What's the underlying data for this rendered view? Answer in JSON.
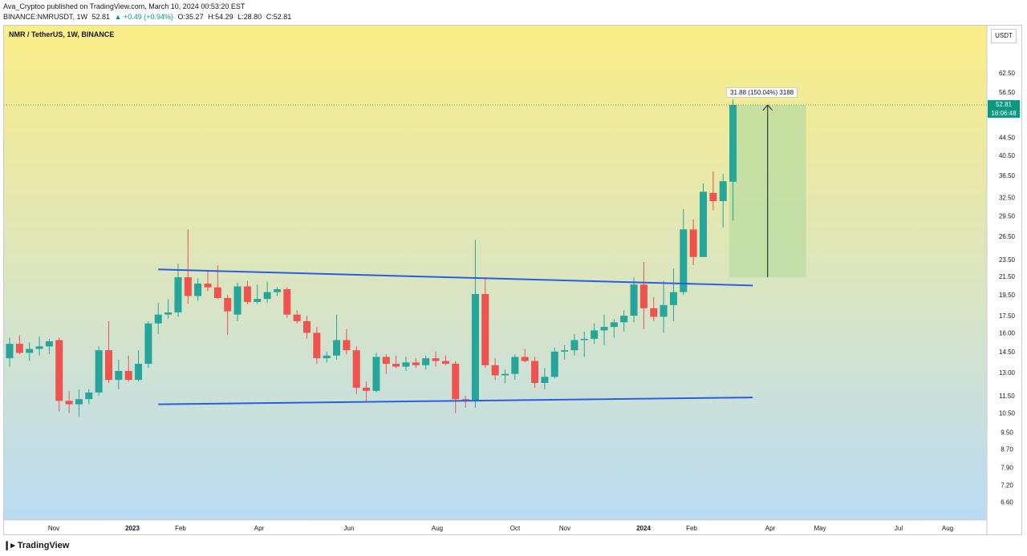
{
  "header": {
    "publisher": "Ava_Cryptoo published on TradingView.com, March 10, 2024 00:53:20 EST",
    "symbol": "BINANCE:NMRUSDT, 1W",
    "last": "52.81",
    "change": "▲ +0.49 (+0.94%)",
    "open": "O:35.27",
    "high": "H:54.29",
    "low": "L:28.80",
    "close": "C:52.81"
  },
  "chart": {
    "pair_label": "NMR / TetherUS, 1W, BINANCE",
    "currency": "USDT",
    "price_badge": {
      "price": "52.81",
      "countdown": "18:06:48"
    },
    "measure_label": "31.88 (150.04%) 3188",
    "colors": {
      "up": "#26a69a",
      "down": "#ef5350",
      "trendline": "#2a5ee0",
      "measure_fill": "#b9dca2",
      "bg_top": "#fbee87",
      "bg_bottom": "#bcdcf5"
    }
  },
  "footer": {
    "brand": "TradingView"
  },
  "chart_data": {
    "type": "candlestick",
    "y_scale": "log",
    "ylim": [
      6.0,
      80.0
    ],
    "y_ticks": [
      "62.50",
      "56.50",
      "44.50",
      "40.50",
      "36.50",
      "32.50",
      "29.50",
      "26.50",
      "23.50",
      "21.50",
      "19.50",
      "17.50",
      "16.00",
      "14.50",
      "13.00",
      "11.50",
      "10.50",
      "9.50",
      "8.70",
      "7.90",
      "7.20",
      "6.60"
    ],
    "x_labels": [
      "Nov",
      "2023",
      "Feb",
      "Apr",
      "Jun",
      "Aug",
      "Oct",
      "Nov",
      "2024",
      "Feb",
      "Apr",
      "May",
      "Jul",
      "Aug"
    ],
    "candles": [
      {
        "o": 14.0,
        "h": 15.6,
        "l": 13.4,
        "c": 15.1
      },
      {
        "o": 15.1,
        "h": 15.8,
        "l": 14.3,
        "c": 14.4
      },
      {
        "o": 14.4,
        "h": 15.2,
        "l": 13.8,
        "c": 14.7
      },
      {
        "o": 14.7,
        "h": 15.7,
        "l": 14.2,
        "c": 14.9
      },
      {
        "o": 14.9,
        "h": 15.5,
        "l": 14.3,
        "c": 15.3
      },
      {
        "o": 15.4,
        "h": 15.6,
        "l": 10.6,
        "c": 11.2
      },
      {
        "o": 11.2,
        "h": 11.8,
        "l": 10.5,
        "c": 11.0
      },
      {
        "o": 11.0,
        "h": 11.9,
        "l": 10.3,
        "c": 11.3
      },
      {
        "o": 11.3,
        "h": 11.9,
        "l": 11.0,
        "c": 11.7
      },
      {
        "o": 11.7,
        "h": 14.9,
        "l": 11.5,
        "c": 14.6
      },
      {
        "o": 14.6,
        "h": 17.0,
        "l": 12.3,
        "c": 12.5
      },
      {
        "o": 12.5,
        "h": 13.9,
        "l": 11.9,
        "c": 13.1
      },
      {
        "o": 13.1,
        "h": 14.2,
        "l": 12.4,
        "c": 12.5
      },
      {
        "o": 12.5,
        "h": 14.6,
        "l": 12.4,
        "c": 13.6
      },
      {
        "o": 13.6,
        "h": 17.0,
        "l": 13.3,
        "c": 16.8
      },
      {
        "o": 16.8,
        "h": 18.7,
        "l": 15.9,
        "c": 17.6
      },
      {
        "o": 17.6,
        "h": 19.1,
        "l": 17.2,
        "c": 17.8
      },
      {
        "o": 17.8,
        "h": 23.0,
        "l": 17.4,
        "c": 21.4
      },
      {
        "o": 21.4,
        "h": 27.5,
        "l": 18.6,
        "c": 19.4
      },
      {
        "o": 19.4,
        "h": 21.3,
        "l": 18.9,
        "c": 20.7
      },
      {
        "o": 20.7,
        "h": 22.2,
        "l": 19.9,
        "c": 20.3
      },
      {
        "o": 20.3,
        "h": 22.8,
        "l": 19.1,
        "c": 19.2
      },
      {
        "o": 19.2,
        "h": 19.5,
        "l": 15.8,
        "c": 17.9
      },
      {
        "o": 17.6,
        "h": 20.8,
        "l": 17.0,
        "c": 20.4
      },
      {
        "o": 20.4,
        "h": 21.0,
        "l": 18.6,
        "c": 18.8
      },
      {
        "o": 18.8,
        "h": 20.6,
        "l": 18.6,
        "c": 19.1
      },
      {
        "o": 19.1,
        "h": 20.9,
        "l": 18.7,
        "c": 19.8
      },
      {
        "o": 19.8,
        "h": 20.3,
        "l": 19.4,
        "c": 20.1
      },
      {
        "o": 20.1,
        "h": 20.3,
        "l": 17.3,
        "c": 17.6
      },
      {
        "o": 17.6,
        "h": 18.0,
        "l": 16.8,
        "c": 17.0
      },
      {
        "o": 17.0,
        "h": 17.5,
        "l": 15.5,
        "c": 16.0
      },
      {
        "o": 16.0,
        "h": 16.5,
        "l": 13.6,
        "c": 14.0
      },
      {
        "o": 14.0,
        "h": 14.5,
        "l": 13.7,
        "c": 14.2
      },
      {
        "o": 14.2,
        "h": 17.6,
        "l": 13.9,
        "c": 15.4
      },
      {
        "o": 15.4,
        "h": 16.3,
        "l": 14.3,
        "c": 14.6
      },
      {
        "o": 14.6,
        "h": 14.9,
        "l": 11.6,
        "c": 12.0
      },
      {
        "o": 12.0,
        "h": 12.4,
        "l": 11.1,
        "c": 11.8
      },
      {
        "o": 11.8,
        "h": 14.4,
        "l": 11.7,
        "c": 14.1
      },
      {
        "o": 14.1,
        "h": 14.3,
        "l": 12.9,
        "c": 13.6
      },
      {
        "o": 13.6,
        "h": 14.2,
        "l": 13.3,
        "c": 13.4
      },
      {
        "o": 13.4,
        "h": 14.1,
        "l": 13.1,
        "c": 13.7
      },
      {
        "o": 13.7,
        "h": 14.0,
        "l": 13.3,
        "c": 13.5
      },
      {
        "o": 13.5,
        "h": 14.2,
        "l": 13.2,
        "c": 14.0
      },
      {
        "o": 14.0,
        "h": 14.5,
        "l": 13.4,
        "c": 13.8
      },
      {
        "o": 13.8,
        "h": 14.2,
        "l": 13.5,
        "c": 13.6
      },
      {
        "o": 13.6,
        "h": 13.8,
        "l": 10.5,
        "c": 11.3
      },
      {
        "o": 11.3,
        "h": 11.5,
        "l": 10.8,
        "c": 11.2
      },
      {
        "o": 11.2,
        "h": 26.0,
        "l": 10.8,
        "c": 19.6
      },
      {
        "o": 19.6,
        "h": 21.4,
        "l": 13.3,
        "c": 13.5
      },
      {
        "o": 13.5,
        "h": 14.0,
        "l": 12.5,
        "c": 12.8
      },
      {
        "o": 12.8,
        "h": 13.2,
        "l": 12.3,
        "c": 12.9
      },
      {
        "o": 12.9,
        "h": 14.3,
        "l": 12.5,
        "c": 14.1
      },
      {
        "o": 14.1,
        "h": 14.7,
        "l": 13.7,
        "c": 13.8
      },
      {
        "o": 13.8,
        "h": 14.1,
        "l": 12.0,
        "c": 12.3
      },
      {
        "o": 12.3,
        "h": 13.3,
        "l": 11.9,
        "c": 12.7
      },
      {
        "o": 12.7,
        "h": 14.8,
        "l": 12.6,
        "c": 14.5
      },
      {
        "o": 14.5,
        "h": 15.0,
        "l": 13.9,
        "c": 14.6
      },
      {
        "o": 14.6,
        "h": 15.9,
        "l": 14.2,
        "c": 15.4
      },
      {
        "o": 15.4,
        "h": 16.1,
        "l": 14.1,
        "c": 15.5
      },
      {
        "o": 15.5,
        "h": 16.8,
        "l": 15.1,
        "c": 16.2
      },
      {
        "o": 16.2,
        "h": 17.6,
        "l": 15.0,
        "c": 16.5
      },
      {
        "o": 16.5,
        "h": 17.2,
        "l": 15.6,
        "c": 16.9
      },
      {
        "o": 16.9,
        "h": 18.0,
        "l": 16.1,
        "c": 17.5
      },
      {
        "o": 17.5,
        "h": 21.4,
        "l": 16.9,
        "c": 20.6
      },
      {
        "o": 20.6,
        "h": 23.2,
        "l": 16.3,
        "c": 18.2
      },
      {
        "o": 18.2,
        "h": 19.3,
        "l": 17.0,
        "c": 17.4
      },
      {
        "o": 17.4,
        "h": 21.0,
        "l": 16.0,
        "c": 18.5
      },
      {
        "o": 18.5,
        "h": 22.4,
        "l": 17.0,
        "c": 19.8
      },
      {
        "o": 19.8,
        "h": 30.6,
        "l": 19.5,
        "c": 27.5
      },
      {
        "o": 27.5,
        "h": 29.0,
        "l": 22.8,
        "c": 23.8
      },
      {
        "o": 23.8,
        "h": 35.0,
        "l": 23.8,
        "c": 33.5
      },
      {
        "o": 33.3,
        "h": 37.3,
        "l": 30.4,
        "c": 31.9
      },
      {
        "o": 31.9,
        "h": 36.8,
        "l": 27.8,
        "c": 35.4
      },
      {
        "o": 35.3,
        "h": 54.3,
        "l": 28.8,
        "c": 52.8
      }
    ],
    "trendlines": [
      {
        "from": {
          "bar": 15,
          "price": 22.3
        },
        "to": {
          "bar": 75,
          "price": 20.5
        }
      },
      {
        "from": {
          "bar": 15,
          "price": 11.0
        },
        "to": {
          "bar": 75,
          "price": 11.4
        }
      }
    ],
    "measure": {
      "from_price": 21.4,
      "to_price": 52.8,
      "from_bar": 73,
      "to_bar": 80
    }
  }
}
